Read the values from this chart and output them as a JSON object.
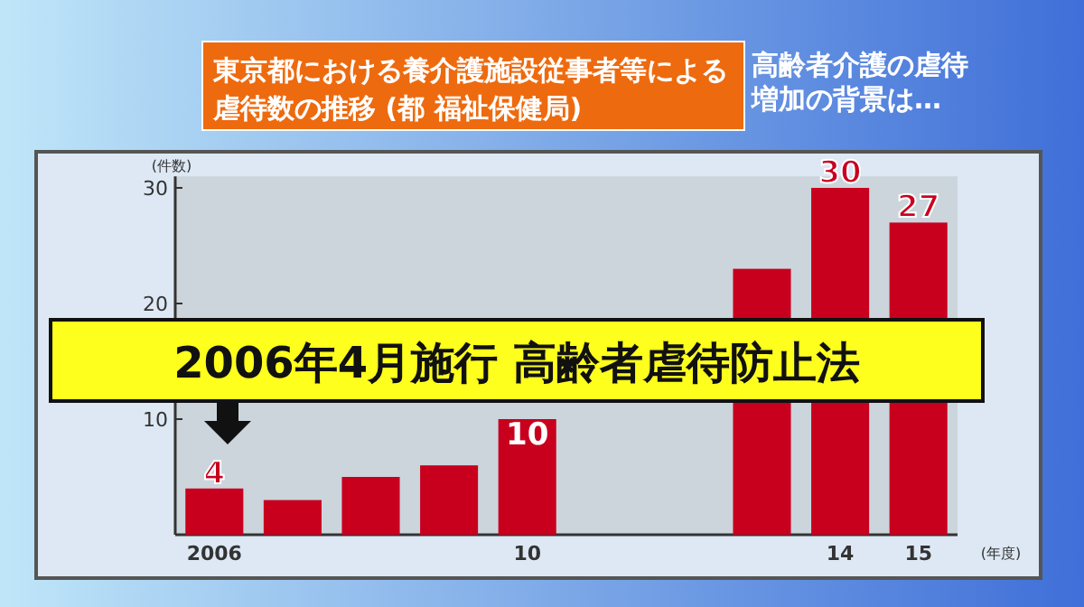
{
  "chart_data": {
    "type": "bar",
    "title": "東京都における養介護施設従事者等による",
    "subtitle": "虐待数の推移 (都 福祉保健局)",
    "xlabel": "(年度)",
    "ylabel": "(件数)",
    "categories": [
      "2006",
      null,
      null,
      null,
      "10",
      null,
      null,
      null,
      "14",
      "15"
    ],
    "values": [
      4,
      3,
      5,
      6,
      10,
      null,
      null,
      23,
      30,
      27
    ],
    "value_labels": [
      "4",
      null,
      null,
      null,
      "10",
      null,
      null,
      null,
      "30",
      "27"
    ],
    "color": "#c8001e",
    "ylim": [
      0,
      31
    ],
    "yticks": [
      10,
      20,
      30
    ],
    "annotations": [
      "2006年4月施行 高齢者虐待防止法",
      "高齢者介護の虐待増加の背景は…"
    ]
  }
}
